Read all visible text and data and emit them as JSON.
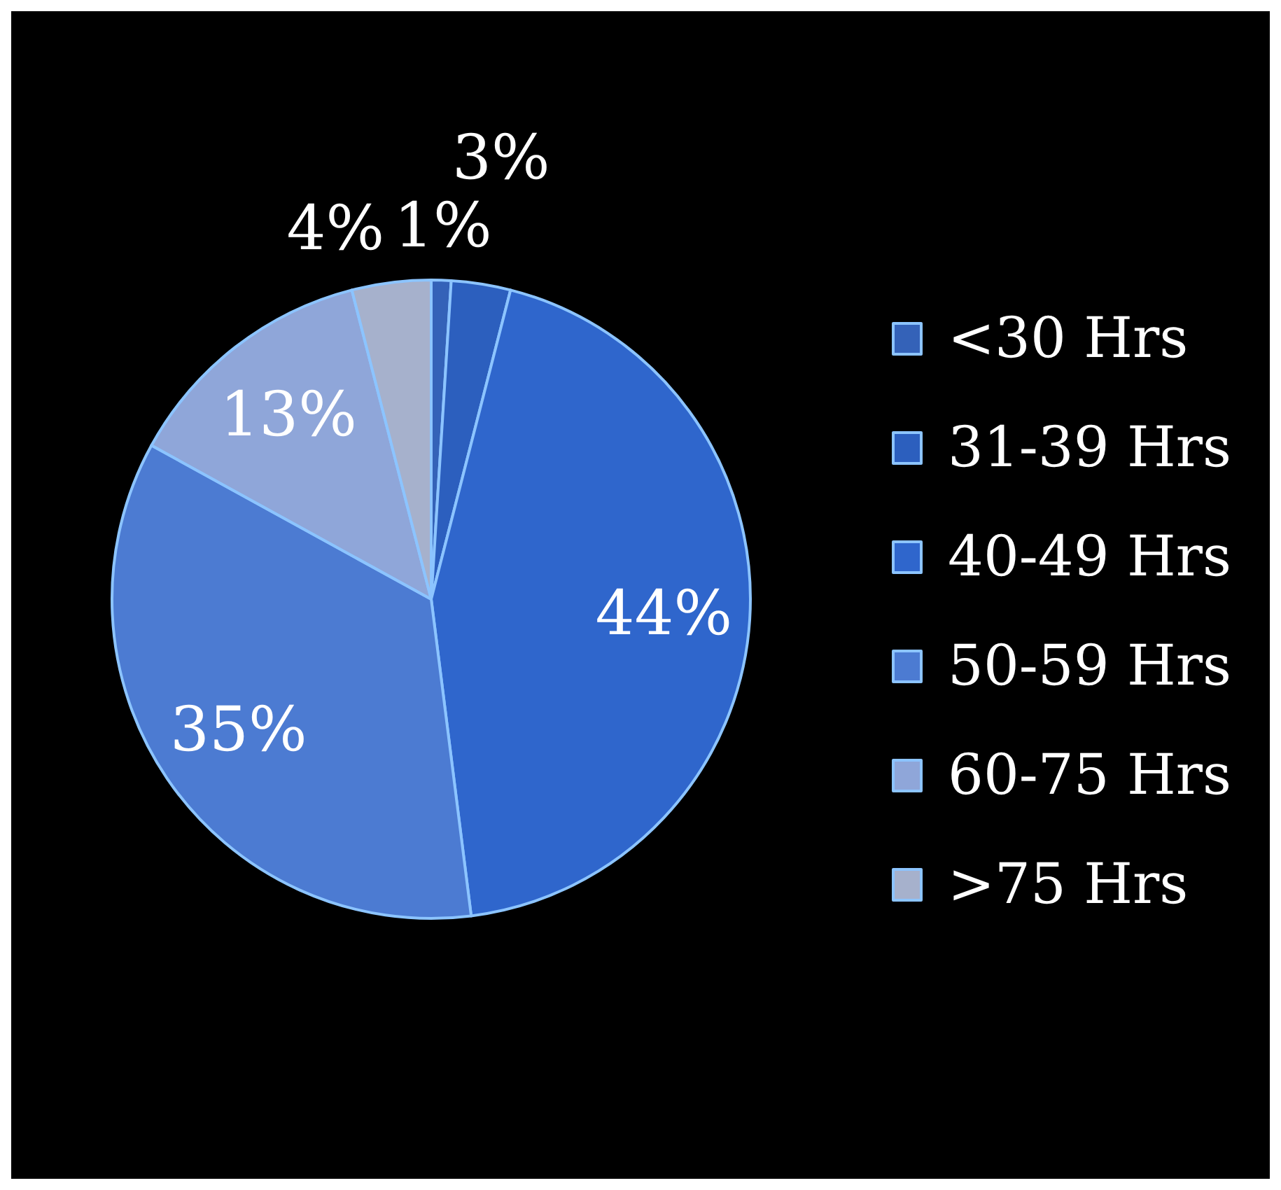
{
  "chart_data": {
    "type": "pie",
    "categories": [
      "<30 Hrs",
      "31-39 Hrs",
      "40-49 Hrs",
      "50-59 Hrs",
      "60-75 Hrs",
      ">75 Hrs"
    ],
    "values": [
      1,
      3,
      44,
      35,
      13,
      4
    ],
    "colors": [
      "#3462b8",
      "#2c5fbe",
      "#2f66cc",
      "#4c7bd2",
      "#8fa6d9",
      "#a6b1cc"
    ],
    "value_labels": [
      "1%",
      "3%",
      "44%",
      "35%",
      "13%",
      "4%"
    ],
    "legend": "right"
  }
}
